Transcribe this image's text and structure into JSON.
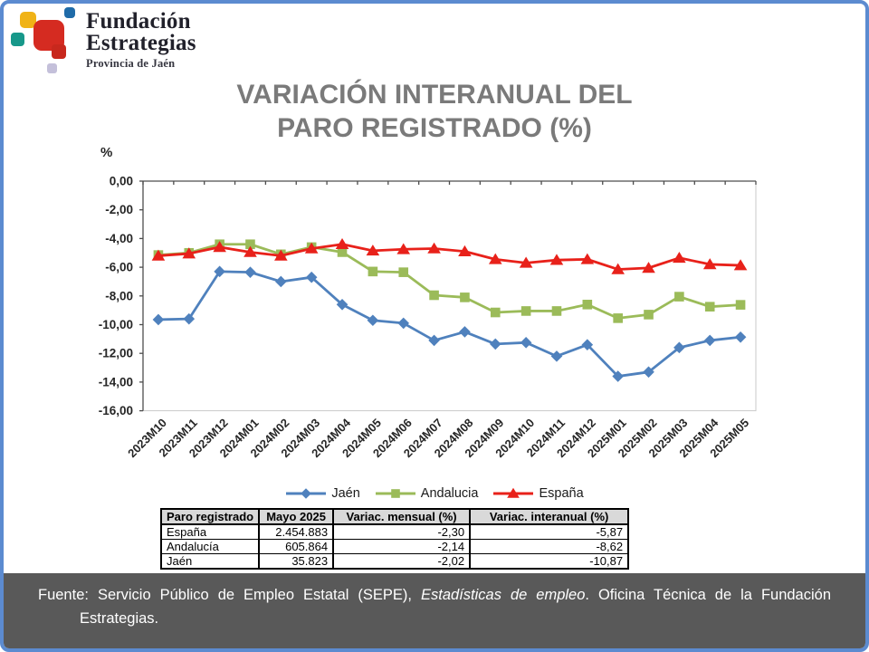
{
  "logo": {
    "line1": "Fundación",
    "line2": "Estrategias",
    "subtitle": "Provincia de Jaén",
    "square_colors": {
      "yellow": "#F0B317",
      "blue": "#1F6BA8",
      "teal": "#17988A",
      "red_big": "#D52B21",
      "red_small": "#C8281D",
      "lavender": "#C4C0DA"
    }
  },
  "header": {
    "title_line1": "VARIACIÓN INTERANUAL DEL",
    "title_line2": "PARO REGISTRADO (%)"
  },
  "chart_data": {
    "type": "line",
    "title": "VARIACIÓN INTERANUAL DEL PARO REGISTRADO (%)",
    "xlabel": "",
    "ylabel": "%",
    "ylim": [
      -16,
      0
    ],
    "grid": false,
    "legend_position": "bottom",
    "ytick_labels": [
      "0,00",
      "-2,00",
      "-4,00",
      "-6,00",
      "-8,00",
      "-10,00",
      "-12,00",
      "-14,00",
      "-16,00"
    ],
    "categories": [
      "2023M10",
      "2023M11",
      "2023M12",
      "2024M01",
      "2024M02",
      "2024M03",
      "2024M04",
      "2024M05",
      "2024M06",
      "2024M07",
      "2024M08",
      "2024M09",
      "2024M10",
      "2024M11",
      "2024M12",
      "2025M01",
      "2025M02",
      "2025M03",
      "2025M04",
      "2025M05"
    ],
    "series": [
      {
        "name": "Jaén",
        "color": "#4F81BD",
        "marker": "diamond",
        "values": [
          -9.65,
          -9.6,
          -6.3,
          -6.35,
          -7.0,
          -6.7,
          -8.6,
          -9.7,
          -9.9,
          -11.1,
          -10.5,
          -11.35,
          -11.25,
          -12.2,
          -11.4,
          -13.6,
          -13.3,
          -11.6,
          -11.1,
          -10.87
        ]
      },
      {
        "name": "Andalucia",
        "color": "#9BBB59",
        "marker": "square",
        "values": [
          -5.15,
          -5.0,
          -4.4,
          -4.4,
          -5.1,
          -4.6,
          -4.95,
          -6.3,
          -6.35,
          -7.95,
          -8.1,
          -9.15,
          -9.05,
          -9.05,
          -8.6,
          -9.55,
          -9.3,
          -8.05,
          -8.75,
          -8.62
        ]
      },
      {
        "name": "España",
        "color": "#E8211A",
        "marker": "triangle",
        "values": [
          -5.2,
          -5.05,
          -4.6,
          -4.95,
          -5.2,
          -4.7,
          -4.4,
          -4.85,
          -4.75,
          -4.7,
          -4.9,
          -5.45,
          -5.7,
          -5.5,
          -5.45,
          -6.15,
          -6.05,
          -5.35,
          -5.8,
          -5.87
        ]
      }
    ]
  },
  "table": {
    "headers": [
      "Paro registrado",
      "Mayo 2025",
      "Variac. mensual (%)",
      "Variac. interanual (%)"
    ],
    "rows": [
      [
        "España",
        "2.454.883",
        "-2,30",
        "-5,87"
      ],
      [
        "Andalucía",
        "605.864",
        "-2,14",
        "-8,62"
      ],
      [
        "Jaén",
        "35.823",
        "-2,02",
        "-10,87"
      ]
    ]
  },
  "footer": {
    "prefix": "Fuente: Servicio Público de Empleo Estatal (SEPE), ",
    "italic": "Estadísticas de empleo",
    "suffix": ". Oficina Técnica de la Fundación",
    "line2": "Estrategias."
  },
  "colors": {
    "frame": "#5C8BD0",
    "title": "#7A7A7A",
    "footer_bg": "#595959",
    "table_header_bg": "#D9D9D9",
    "axis": "#4D4D4D",
    "plot_border": "#C9C9C9"
  }
}
